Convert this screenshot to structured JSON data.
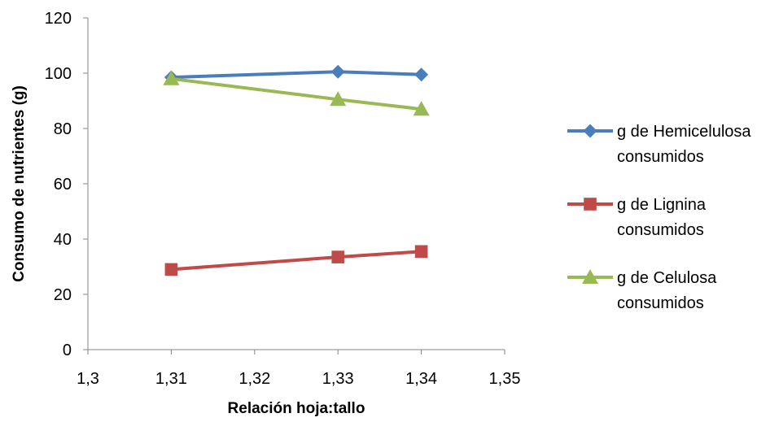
{
  "chart_data": {
    "type": "line",
    "xlabel": "Relación hoja:tallo",
    "ylabel": "Consumo de nutrientes (g)",
    "xlim": [
      1.3,
      1.35
    ],
    "ylim": [
      0,
      120
    ],
    "x_ticks": [
      "1,3",
      "1,31",
      "1,32",
      "1,33",
      "1,34",
      "1,35"
    ],
    "x_tick_values": [
      1.3,
      1.31,
      1.32,
      1.33,
      1.34,
      1.35
    ],
    "y_ticks": [
      "0",
      "20",
      "40",
      "60",
      "80",
      "100",
      "120"
    ],
    "y_tick_values": [
      0,
      20,
      40,
      60,
      80,
      100,
      120
    ],
    "grid": false,
    "legend_position": "right",
    "series": [
      {
        "name_lines": [
          "g de Hemicelulosa",
          "consumidos"
        ],
        "marker": "diamond",
        "color": "#4A7EBB",
        "x": [
          1.31,
          1.33,
          1.34
        ],
        "y": [
          98.5,
          100.5,
          99.5
        ]
      },
      {
        "name_lines": [
          "g de Lignina",
          "consumidos"
        ],
        "marker": "square",
        "color": "#BE4B48",
        "x": [
          1.31,
          1.33,
          1.34
        ],
        "y": [
          29,
          33.5,
          35.5
        ]
      },
      {
        "name_lines": [
          "g de Celulosa",
          "consumidos"
        ],
        "marker": "triangle",
        "color": "#98B954",
        "x": [
          1.31,
          1.33,
          1.34
        ],
        "y": [
          98,
          90.5,
          87
        ]
      }
    ]
  }
}
